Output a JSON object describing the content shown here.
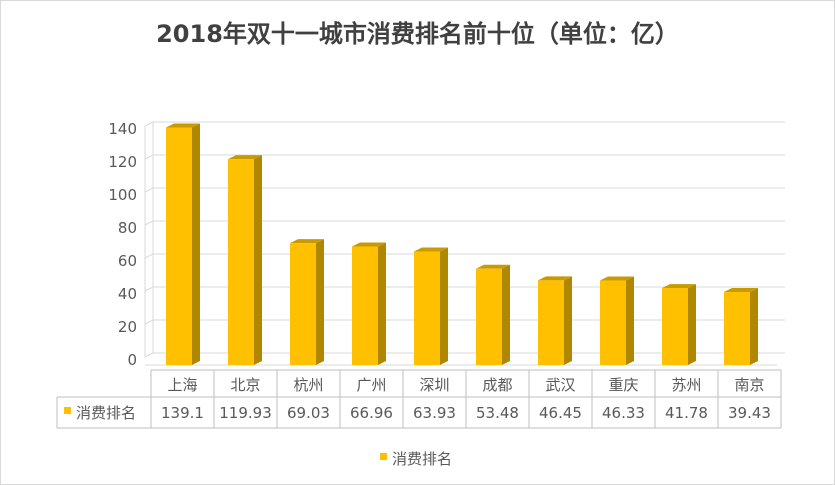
{
  "chart_data": {
    "type": "bar",
    "title": "2018年双十一城市消费排名前十位（单位：亿）",
    "categories": [
      "上海",
      "北京",
      "杭州",
      "广州",
      "深圳",
      "成都",
      "武汉",
      "重庆",
      "苏州",
      "南京"
    ],
    "series": [
      {
        "name": "消费排名",
        "values": [
          139.1,
          119.93,
          69.03,
          66.96,
          63.93,
          53.48,
          46.45,
          46.33,
          41.78,
          39.43
        ],
        "value_labels": [
          "139.1",
          "119.93",
          "69.03",
          "66.96",
          "63.93",
          "53.48",
          "46.45",
          "46.33",
          "41.78",
          "39.43"
        ]
      }
    ],
    "ylim": [
      0,
      140
    ],
    "yticks": [
      0,
      20,
      40,
      60,
      80,
      100,
      120,
      140
    ],
    "grid": true,
    "legend_position": "bottom",
    "data_table": true,
    "style": "3d-column",
    "colors": {
      "bar_front": "#FFC000",
      "bar_side": "#B08700",
      "bar_top": "#C89A00",
      "grid": "#d9d9d9",
      "axis_text": "#595959"
    }
  }
}
